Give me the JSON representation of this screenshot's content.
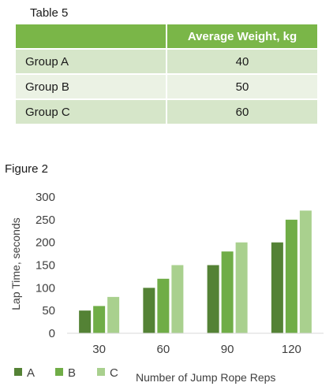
{
  "table": {
    "caption": "Table 5",
    "header": [
      "",
      "Average Weight, kg"
    ],
    "rows": [
      {
        "group": "Group A",
        "value": "40"
      },
      {
        "group": "Group B",
        "value": "50"
      },
      {
        "group": "Group C",
        "value": "60"
      }
    ]
  },
  "figure": {
    "caption": "Figure 2"
  },
  "chart_data": {
    "type": "bar",
    "categories": [
      "30",
      "60",
      "90",
      "120"
    ],
    "series": [
      {
        "name": "A",
        "color": "#548235",
        "values": [
          50,
          100,
          150,
          200
        ]
      },
      {
        "name": "B",
        "color": "#70ad47",
        "values": [
          60,
          120,
          180,
          250
        ]
      },
      {
        "name": "C",
        "color": "#a9d08e",
        "values": [
          80,
          150,
          200,
          270
        ]
      }
    ],
    "xlabel": "Number of Jump Rope Reps",
    "ylabel": "Lap Time, seconds",
    "ylim": [
      0,
      300
    ],
    "yticks": [
      0,
      50,
      100,
      150,
      200,
      250,
      300
    ],
    "grid": false,
    "legend": "bottom-left"
  }
}
